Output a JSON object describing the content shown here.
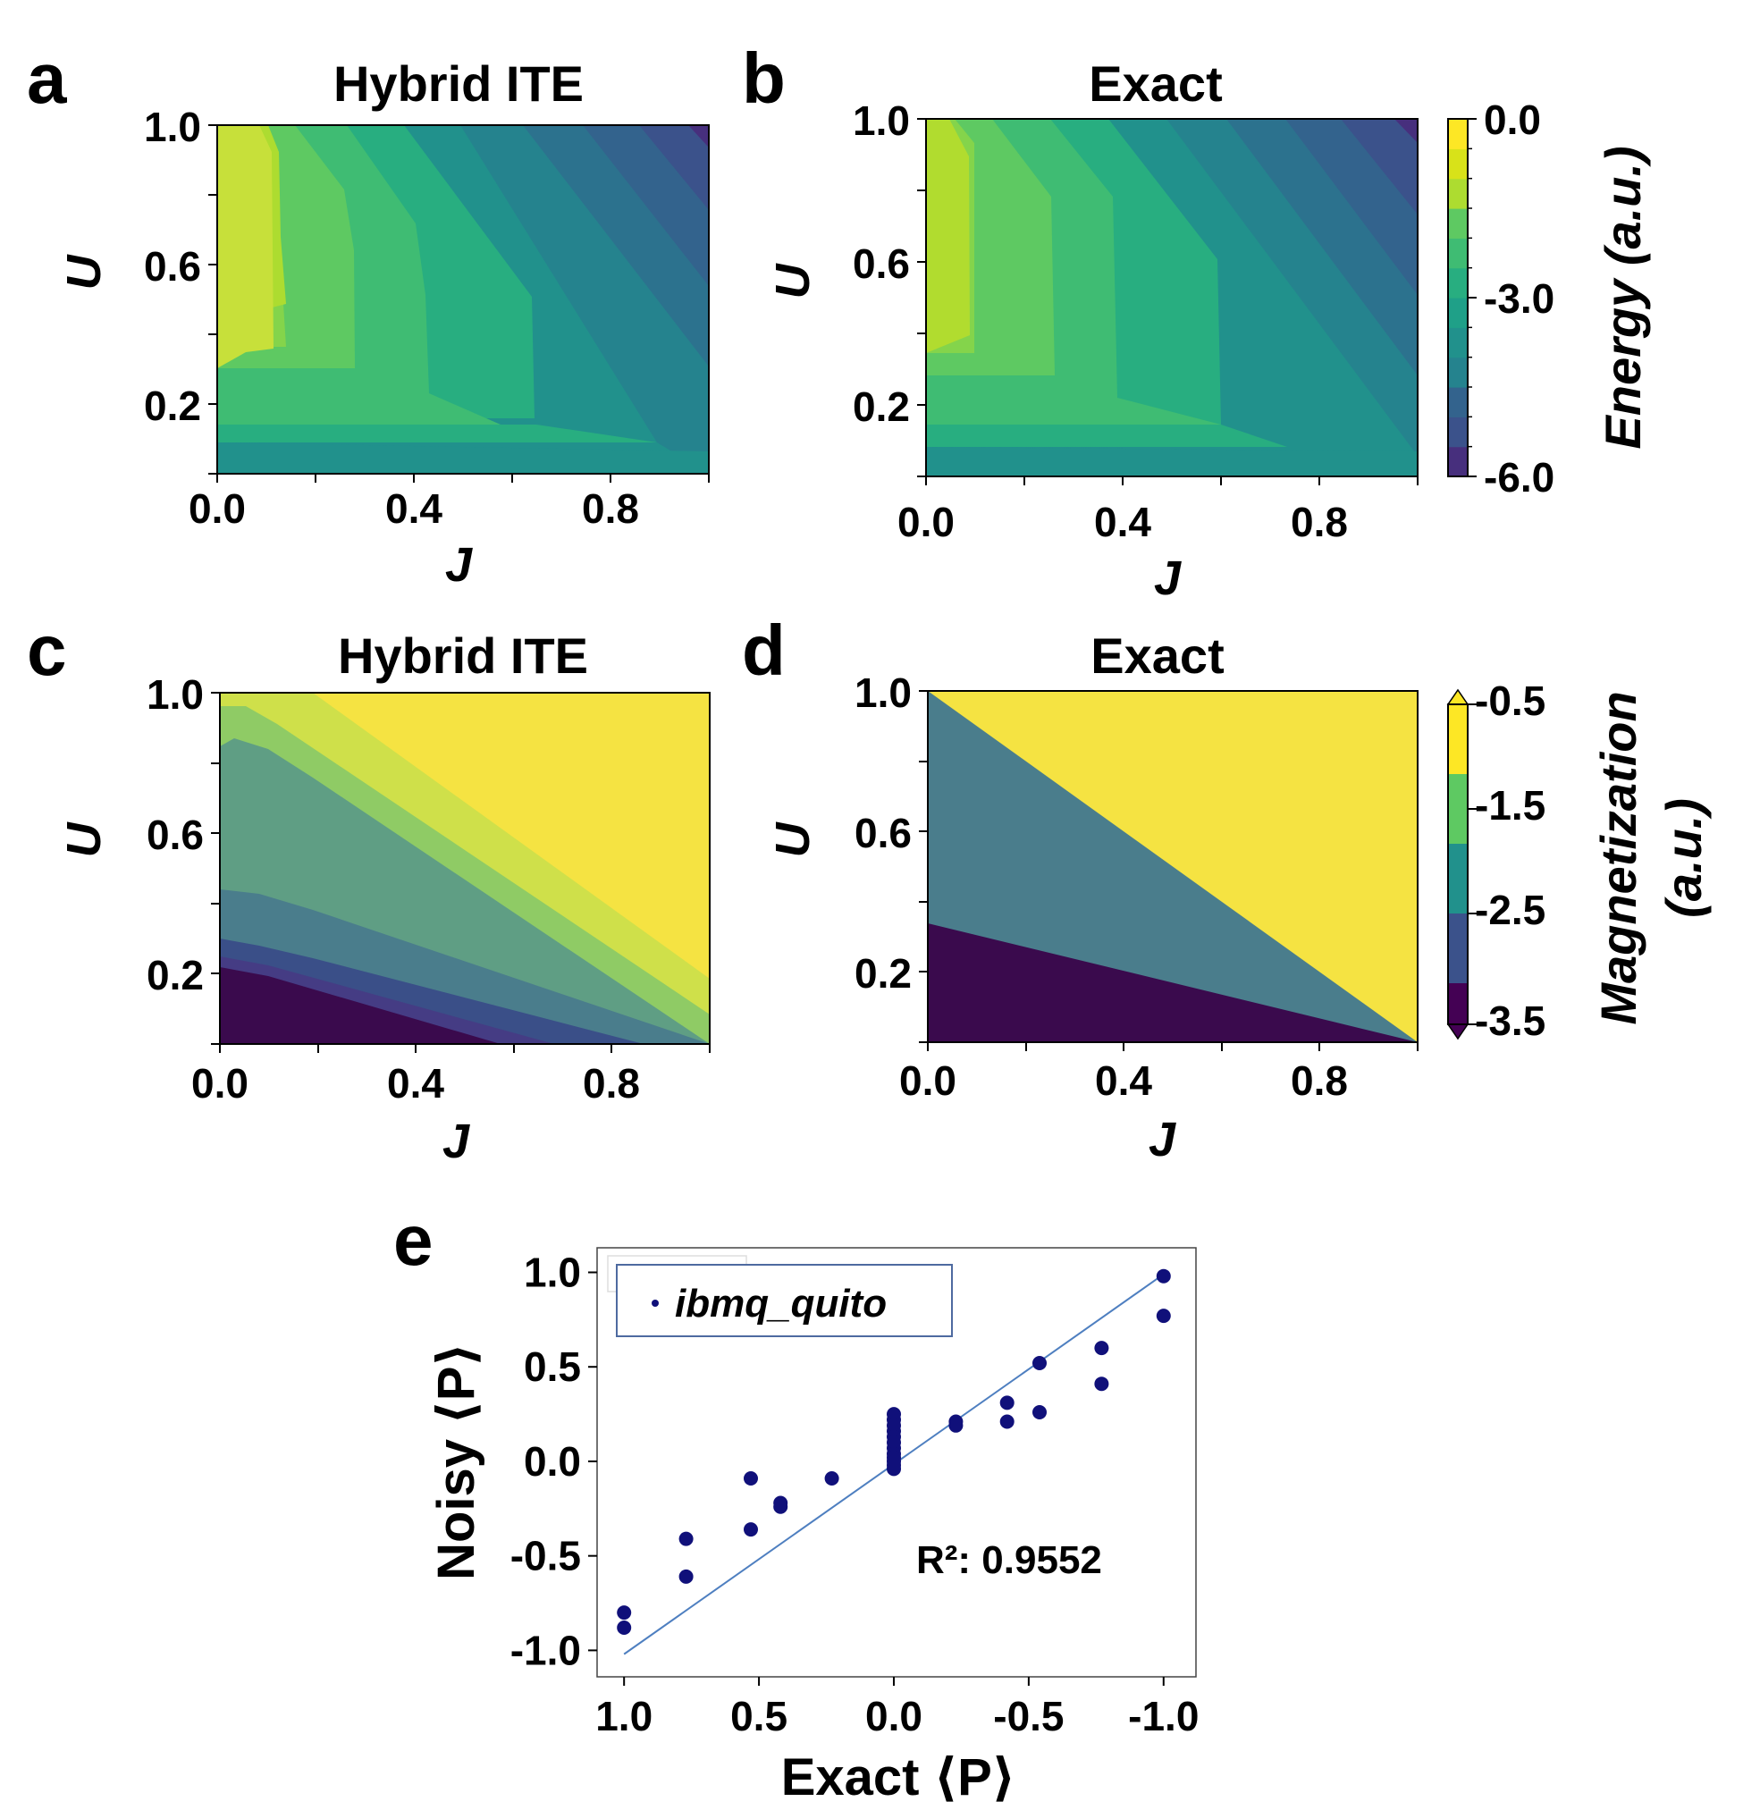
{
  "figure": {
    "panel_letters": [
      "a",
      "b",
      "c",
      "d",
      "e"
    ]
  },
  "chart_data": [
    {
      "panel": "a",
      "type": "heatmap",
      "title": "Hybrid ITE",
      "xlabel": "J",
      "ylabel": "U",
      "xticks": [
        "0.0",
        "0.4",
        "0.8"
      ],
      "xtick_values": [
        0.0,
        0.4,
        0.8
      ],
      "yticks": [
        "1.0",
        "0.6",
        "0.2"
      ],
      "ytick_values": [
        1.0,
        0.6,
        0.2
      ],
      "xlim": [
        0.0,
        1.0
      ],
      "ylim": [
        0.0,
        1.0
      ],
      "colorbar": "energy"
    },
    {
      "panel": "b",
      "type": "heatmap",
      "title": "Exact",
      "xlabel": "J",
      "ylabel": "U",
      "xticks": [
        "0.0",
        "0.4",
        "0.8"
      ],
      "xtick_values": [
        0.0,
        0.4,
        0.8
      ],
      "yticks": [
        "1.0",
        "0.6",
        "0.2"
      ],
      "ytick_values": [
        1.0,
        0.6,
        0.2
      ],
      "xlim": [
        0.0,
        1.0
      ],
      "ylim": [
        0.0,
        1.0
      ],
      "colorbar": "energy"
    },
    {
      "panel": "c",
      "type": "heatmap",
      "title": "Hybrid ITE",
      "xlabel": "J",
      "ylabel": "U",
      "xticks": [
        "0.0",
        "0.4",
        "0.8"
      ],
      "xtick_values": [
        0.0,
        0.4,
        0.8
      ],
      "yticks": [
        "1.0",
        "0.6",
        "0.2"
      ],
      "ytick_values": [
        1.0,
        0.6,
        0.2
      ],
      "xlim": [
        0.0,
        1.0
      ],
      "ylim": [
        0.0,
        1.0
      ],
      "colorbar": "magnetization"
    },
    {
      "panel": "d",
      "type": "heatmap",
      "title": "Exact",
      "xlabel": "J",
      "ylabel": "U",
      "xticks": [
        "0.0",
        "0.4",
        "0.8"
      ],
      "xtick_values": [
        0.0,
        0.4,
        0.8
      ],
      "yticks": [
        "1.0",
        "0.6",
        "0.2"
      ],
      "ytick_values": [
        1.0,
        0.6,
        0.2
      ],
      "xlim": [
        0.0,
        1.0
      ],
      "ylim": [
        0.0,
        1.0
      ],
      "colorbar": "magnetization"
    },
    {
      "panel": "e",
      "type": "scatter",
      "xlabel": "Exact ⟨P⟩",
      "ylabel": "Noisy ⟨P⟩",
      "xticks": [
        "1.0",
        "0.5",
        "0.0",
        "-0.5",
        "-1.0"
      ],
      "xtick_values": [
        1.0,
        0.5,
        0.0,
        -0.5,
        -1.0
      ],
      "yticks": [
        "1.0",
        "0.5",
        "0.0",
        "-0.5",
        "-1.0"
      ],
      "ytick_values": [
        1.0,
        0.5,
        0.0,
        -0.5,
        -1.0
      ],
      "xlim": [
        1.1,
        -1.12
      ],
      "ylim": [
        -1.14,
        1.13
      ],
      "legend": "ibmq_quito",
      "annotation": "R²: 0.9552",
      "fit_line": [
        [
          1.0,
          -1.02
        ],
        [
          -1.0,
          0.99
        ]
      ],
      "series": [
        {
          "name": "ibmq_quito",
          "color": "#10107a",
          "x": [
            1.0,
            1.0,
            0.77,
            0.77,
            0.53,
            0.53,
            0.42,
            0.42,
            0.23,
            0.0,
            0.0,
            0.0,
            0.0,
            0.0,
            0.0,
            0.0,
            0.0,
            0.0,
            0.0,
            0.0,
            0.0,
            -0.23,
            -0.23,
            -0.42,
            -0.42,
            -0.54,
            -0.54,
            -0.77,
            -0.77,
            -1.0,
            -1.0
          ],
          "y": [
            -0.8,
            -0.88,
            -0.41,
            -0.61,
            -0.09,
            -0.36,
            -0.22,
            -0.24,
            -0.09,
            0.25,
            0.22,
            0.19,
            0.16,
            0.13,
            0.1,
            0.07,
            0.04,
            0.02,
            0.0,
            -0.02,
            -0.04,
            0.21,
            0.19,
            0.31,
            0.21,
            0.52,
            0.26,
            0.6,
            0.41,
            0.98,
            0.77
          ]
        }
      ]
    }
  ],
  "colorbars": {
    "energy": {
      "label": "Energy (a.u.)",
      "ticks": [
        "0.0",
        "-3.0",
        "-6.0"
      ],
      "tick_values": [
        0.0,
        -3.0,
        -6.0
      ],
      "range": [
        -6.0,
        0.0
      ],
      "levels": 12,
      "colors": [
        "#472f7d",
        "#3b528b",
        "#33638d",
        "#2c728e",
        "#25838e",
        "#21918c",
        "#1fa088",
        "#28ae80",
        "#3fbc73",
        "#5ec962",
        "#84d44b",
        "#addc30",
        "#d8e219",
        "#fde725"
      ]
    },
    "magnetization": {
      "label_line1": "Magnetization",
      "label_line2": "(a.u.)",
      "ticks": [
        "-0.5",
        "-1.5",
        "-2.5",
        "-3.5"
      ],
      "tick_values": [
        -0.5,
        -1.5,
        -2.5,
        -3.5
      ],
      "range": [
        -3.5,
        -0.5
      ],
      "colors": [
        "#440154",
        "#3b528b",
        "#21918c",
        "#5ec962",
        "#fde725"
      ],
      "band_colors": [
        "#3a0a4d",
        "#3a4f88",
        "#4a7d8c",
        "#5f9e84",
        "#8fcb65",
        "#cfe04a",
        "#f5e342"
      ]
    }
  }
}
